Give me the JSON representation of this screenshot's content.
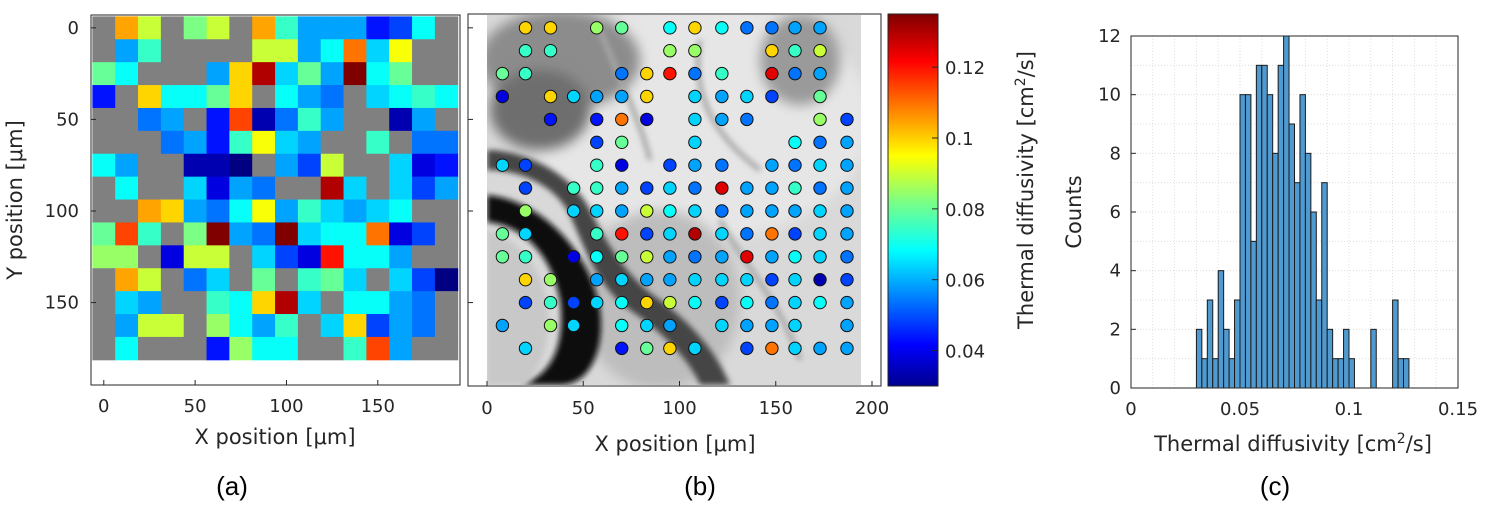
{
  "colors": {
    "gray_pixel": "#808080",
    "hist_bar": "#4f9ad0",
    "hist_edge": "#1a1a1a"
  },
  "colormap": "jet",
  "panel_labels": [
    "(a)",
    "(b)",
    "(c)"
  ],
  "chart_data": [
    {
      "type": "heatmap",
      "panel": "(a)",
      "xlabel": "X position [μm]",
      "ylabel": "Y position [μm]",
      "xticks": [
        "0",
        "50",
        "100",
        "150"
      ],
      "yticks": [
        "0",
        "50",
        "100",
        "150"
      ],
      "xlim": [
        -7,
        195
      ],
      "ylim": [
        195,
        -7
      ],
      "cell_size_um": 12.5,
      "nodata_color": "#808080",
      "clim": [
        0.03,
        0.135
      ],
      "grid": [
        [
          null,
          0.105,
          0.09,
          null,
          0.082,
          0.09,
          null,
          0.105,
          0.075,
          0.06,
          0.06,
          0.06,
          0.045,
          0.05,
          0.07,
          null
        ],
        [
          null,
          0.06,
          0.075,
          null,
          null,
          null,
          null,
          0.09,
          0.09,
          0.06,
          0.07,
          0.11,
          0.065,
          0.095,
          null,
          null
        ],
        [
          0.08,
          0.07,
          null,
          null,
          null,
          0.06,
          0.1,
          0.13,
          0.065,
          0.08,
          0.06,
          0.135,
          0.07,
          0.08,
          null,
          null
        ],
        [
          0.045,
          null,
          0.1,
          0.07,
          0.07,
          0.08,
          0.1,
          null,
          0.07,
          0.06,
          0.055,
          null,
          0.065,
          0.07,
          0.075,
          0.07
        ],
        [
          null,
          null,
          0.055,
          0.06,
          null,
          0.045,
          0.115,
          0.035,
          0.055,
          0.075,
          0.06,
          null,
          null,
          0.035,
          0.06,
          null
        ],
        [
          null,
          null,
          null,
          0.055,
          0.06,
          0.045,
          0.075,
          0.095,
          0.065,
          0.06,
          null,
          null,
          0.075,
          null,
          0.055,
          0.055
        ],
        [
          0.07,
          0.06,
          null,
          null,
          0.035,
          0.035,
          0.03,
          null,
          0.06,
          0.05,
          0.09,
          null,
          null,
          0.065,
          0.04,
          0.045
        ],
        [
          null,
          0.07,
          null,
          null,
          0.065,
          0.04,
          0.06,
          0.055,
          null,
          null,
          0.13,
          0.065,
          null,
          0.065,
          0.05,
          0.06
        ],
        [
          null,
          null,
          0.105,
          0.1,
          0.06,
          0.055,
          0.07,
          0.095,
          0.06,
          0.075,
          0.065,
          0.06,
          0.065,
          0.07,
          null,
          null
        ],
        [
          0.08,
          0.115,
          0.075,
          null,
          0.082,
          0.135,
          0.06,
          0.055,
          0.135,
          0.065,
          0.07,
          0.07,
          0.11,
          0.04,
          0.05,
          null
        ],
        [
          0.085,
          0.085,
          null,
          0.04,
          0.09,
          0.09,
          null,
          0.065,
          0.05,
          0.04,
          0.12,
          0.07,
          0.07,
          0.06,
          null,
          null
        ],
        [
          null,
          0.105,
          0.09,
          null,
          0.055,
          0.065,
          null,
          0.08,
          null,
          0.075,
          0.08,
          0.065,
          null,
          0.065,
          0.05,
          0.03
        ],
        [
          null,
          0.065,
          0.06,
          null,
          null,
          0.075,
          0.07,
          0.1,
          0.13,
          0.065,
          null,
          0.07,
          0.07,
          0.06,
          0.055,
          null
        ],
        [
          null,
          0.06,
          0.09,
          0.09,
          null,
          0.085,
          0.07,
          0.06,
          0.075,
          null,
          0.065,
          0.1,
          0.05,
          0.06,
          0.055,
          null
        ],
        [
          null,
          0.07,
          null,
          null,
          null,
          0.045,
          0.085,
          0.07,
          0.07,
          null,
          null,
          0.075,
          0.115,
          0.06,
          null,
          null
        ]
      ]
    },
    {
      "type": "scatter",
      "panel": "(b)",
      "xlabel": "X position [μm]",
      "xticks": [
        "0",
        "50",
        "100",
        "150",
        "200"
      ],
      "xlim": [
        0,
        200
      ],
      "ylim": [
        195,
        -7
      ],
      "background": "grayscale microscope image",
      "colorbar": {
        "label": "Thermal diffusivity [cm²/s]",
        "ticks": [
          "0.04",
          "0.06",
          "0.08",
          "0.1",
          "0.12"
        ],
        "tick_values": [
          0.04,
          0.06,
          0.08,
          0.1,
          0.12
        ],
        "clim": [
          0.03,
          0.135
        ]
      },
      "points": [
        [
          20,
          0,
          0.1
        ],
        [
          33,
          0,
          0.1
        ],
        [
          57,
          0,
          0.085
        ],
        [
          70,
          0,
          0.08
        ],
        [
          95,
          0,
          0.07
        ],
        [
          108,
          0,
          0.1
        ],
        [
          122,
          0,
          0.07
        ],
        [
          135,
          0,
          0.055
        ],
        [
          148,
          0,
          0.055
        ],
        [
          160,
          0,
          0.06
        ],
        [
          173,
          0,
          0.06
        ],
        [
          20,
          12.5,
          0.075
        ],
        [
          33,
          12.5,
          0.075
        ],
        [
          95,
          12.5,
          0.085
        ],
        [
          108,
          12.5,
          0.085
        ],
        [
          148,
          12.5,
          0.1
        ],
        [
          160,
          12.5,
          0.075
        ],
        [
          173,
          12.5,
          0.09
        ],
        [
          8,
          25,
          0.08
        ],
        [
          20,
          25,
          0.075
        ],
        [
          70,
          25,
          0.055
        ],
        [
          83,
          25,
          0.1
        ],
        [
          95,
          25,
          0.12
        ],
        [
          108,
          25,
          0.055
        ],
        [
          122,
          25,
          0.075
        ],
        [
          148,
          25,
          0.125
        ],
        [
          160,
          25,
          0.055
        ],
        [
          173,
          25,
          0.06
        ],
        [
          8,
          37.5,
          0.04
        ],
        [
          33,
          37.5,
          0.1
        ],
        [
          45,
          37.5,
          0.065
        ],
        [
          57,
          37.5,
          0.06
        ],
        [
          70,
          37.5,
          0.06
        ],
        [
          83,
          37.5,
          0.1
        ],
        [
          108,
          37.5,
          0.065
        ],
        [
          122,
          37.5,
          0.06
        ],
        [
          135,
          37.5,
          0.065
        ],
        [
          148,
          37.5,
          0.05
        ],
        [
          173,
          37.5,
          0.08
        ],
        [
          33,
          50,
          0.045
        ],
        [
          57,
          50,
          0.045
        ],
        [
          70,
          50,
          0.11
        ],
        [
          83,
          50,
          0.04
        ],
        [
          108,
          50,
          0.065
        ],
        [
          122,
          50,
          0.06
        ],
        [
          135,
          50,
          0.055
        ],
        [
          173,
          50,
          0.085
        ],
        [
          187,
          50,
          0.05
        ],
        [
          57,
          62.5,
          0.05
        ],
        [
          70,
          62.5,
          0.08
        ],
        [
          108,
          62.5,
          0.065
        ],
        [
          160,
          62.5,
          0.07
        ],
        [
          173,
          62.5,
          0.055
        ],
        [
          187,
          62.5,
          0.06
        ],
        [
          8,
          75,
          0.065
        ],
        [
          20,
          75,
          0.05
        ],
        [
          57,
          75,
          0.075
        ],
        [
          70,
          75,
          0.04
        ],
        [
          95,
          75,
          0.05
        ],
        [
          108,
          75,
          0.06
        ],
        [
          122,
          75,
          0.055
        ],
        [
          148,
          75,
          0.06
        ],
        [
          160,
          75,
          0.055
        ],
        [
          173,
          75,
          0.065
        ],
        [
          187,
          75,
          0.06
        ],
        [
          20,
          87.5,
          0.05
        ],
        [
          45,
          87.5,
          0.075
        ],
        [
          57,
          87.5,
          0.075
        ],
        [
          70,
          87.5,
          0.06
        ],
        [
          83,
          87.5,
          0.05
        ],
        [
          95,
          87.5,
          0.065
        ],
        [
          108,
          87.5,
          0.055
        ],
        [
          122,
          87.5,
          0.125
        ],
        [
          135,
          87.5,
          0.06
        ],
        [
          148,
          87.5,
          0.06
        ],
        [
          160,
          87.5,
          0.075
        ],
        [
          173,
          87.5,
          0.055
        ],
        [
          187,
          87.5,
          0.06
        ],
        [
          20,
          100,
          0.085
        ],
        [
          45,
          100,
          0.065
        ],
        [
          57,
          100,
          0.065
        ],
        [
          70,
          100,
          0.06
        ],
        [
          83,
          100,
          0.09
        ],
        [
          95,
          100,
          0.07
        ],
        [
          108,
          100,
          0.065
        ],
        [
          122,
          100,
          0.055
        ],
        [
          135,
          100,
          0.06
        ],
        [
          148,
          100,
          0.06
        ],
        [
          160,
          100,
          0.06
        ],
        [
          173,
          100,
          0.065
        ],
        [
          187,
          100,
          0.06
        ],
        [
          8,
          112.5,
          0.08
        ],
        [
          20,
          112.5,
          0.065
        ],
        [
          57,
          112.5,
          0.075
        ],
        [
          70,
          112.5,
          0.12
        ],
        [
          83,
          112.5,
          0.05
        ],
        [
          95,
          112.5,
          0.065
        ],
        [
          108,
          112.5,
          0.13
        ],
        [
          122,
          112.5,
          0.065
        ],
        [
          135,
          112.5,
          0.055
        ],
        [
          148,
          112.5,
          0.11
        ],
        [
          160,
          112.5,
          0.05
        ],
        [
          173,
          112.5,
          0.065
        ],
        [
          187,
          112.5,
          0.06
        ],
        [
          8,
          125,
          0.08
        ],
        [
          20,
          125,
          0.075
        ],
        [
          45,
          125,
          0.04
        ],
        [
          57,
          125,
          0.07
        ],
        [
          70,
          125,
          0.08
        ],
        [
          83,
          125,
          0.09
        ],
        [
          95,
          125,
          0.06
        ],
        [
          108,
          125,
          0.055
        ],
        [
          122,
          125,
          0.06
        ],
        [
          135,
          125,
          0.125
        ],
        [
          148,
          125,
          0.06
        ],
        [
          160,
          125,
          0.07
        ],
        [
          173,
          125,
          0.065
        ],
        [
          187,
          125,
          0.055
        ],
        [
          20,
          137.5,
          0.1
        ],
        [
          33,
          137.5,
          0.085
        ],
        [
          57,
          137.5,
          0.06
        ],
        [
          70,
          137.5,
          0.065
        ],
        [
          83,
          137.5,
          0.06
        ],
        [
          95,
          137.5,
          0.06
        ],
        [
          108,
          137.5,
          0.065
        ],
        [
          122,
          137.5,
          0.065
        ],
        [
          135,
          137.5,
          0.065
        ],
        [
          148,
          137.5,
          0.05
        ],
        [
          160,
          137.5,
          0.065
        ],
        [
          173,
          137.5,
          0.035
        ],
        [
          187,
          137.5,
          0.05
        ],
        [
          20,
          150,
          0.05
        ],
        [
          33,
          150,
          0.075
        ],
        [
          45,
          150,
          0.05
        ],
        [
          57,
          150,
          0.065
        ],
        [
          70,
          150,
          0.07
        ],
        [
          83,
          150,
          0.1
        ],
        [
          95,
          150,
          0.09
        ],
        [
          108,
          150,
          0.07
        ],
        [
          122,
          150,
          0.05
        ],
        [
          135,
          150,
          0.07
        ],
        [
          148,
          150,
          0.055
        ],
        [
          160,
          150,
          0.065
        ],
        [
          173,
          150,
          0.07
        ],
        [
          187,
          150,
          0.06
        ],
        [
          8,
          162.5,
          0.06
        ],
        [
          33,
          162.5,
          0.085
        ],
        [
          45,
          162.5,
          0.065
        ],
        [
          70,
          162.5,
          0.07
        ],
        [
          83,
          162.5,
          0.065
        ],
        [
          95,
          162.5,
          0.06
        ],
        [
          122,
          162.5,
          0.065
        ],
        [
          135,
          162.5,
          0.06
        ],
        [
          148,
          162.5,
          0.06
        ],
        [
          160,
          162.5,
          0.065
        ],
        [
          187,
          162.5,
          0.06
        ],
        [
          20,
          175,
          0.065
        ],
        [
          70,
          175,
          0.045
        ],
        [
          83,
          175,
          0.08
        ],
        [
          95,
          175,
          0.1
        ],
        [
          108,
          175,
          0.065
        ],
        [
          135,
          175,
          0.05
        ],
        [
          148,
          175,
          0.11
        ],
        [
          160,
          175,
          0.065
        ],
        [
          173,
          175,
          0.06
        ],
        [
          187,
          175,
          0.06
        ]
      ]
    },
    {
      "type": "bar",
      "panel": "(c)",
      "title": "",
      "xlabel": "Thermal diffusivity [cm²/s]",
      "ylabel": "Counts",
      "xlim": [
        0,
        0.15
      ],
      "ylim": [
        0,
        12
      ],
      "xticks": [
        "0",
        "0.05",
        "0.1",
        "0.15"
      ],
      "yticks": [
        "0",
        "2",
        "4",
        "6",
        "8",
        "10",
        "12"
      ],
      "grid": true,
      "bin_width": 0.0025,
      "bin_start": 0.03,
      "counts": [
        2,
        1,
        3,
        1,
        4,
        2,
        1,
        3,
        10,
        10,
        5,
        11,
        11,
        10,
        8,
        11,
        12,
        9,
        7,
        10,
        8,
        6,
        3,
        7,
        2,
        1,
        1,
        2,
        1,
        0,
        0,
        0,
        2,
        0,
        0,
        0,
        3,
        1,
        1
      ]
    }
  ]
}
